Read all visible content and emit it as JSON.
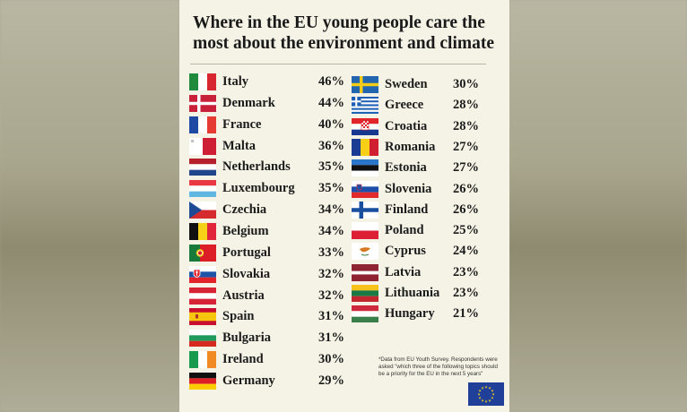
{
  "title": "Where in the EU young people care the most about the environment and climate",
  "footnote": "*Data from EU Youth Survey. Respondents were asked \"which three of the following topics should be a priority for the EU in the next 5 years\"",
  "chart_data": {
    "type": "table",
    "title": "Where in the EU young people care the most about the environment and climate",
    "rows": [
      {
        "country": "Italy",
        "value": "46%",
        "flag": "italy-flag"
      },
      {
        "country": "Denmark",
        "value": "44%",
        "flag": "denmark-flag"
      },
      {
        "country": "France",
        "value": "40%",
        "flag": "france-flag"
      },
      {
        "country": "Malta",
        "value": "36%",
        "flag": "malta-flag"
      },
      {
        "country": "Netherlands",
        "value": "35%",
        "flag": "netherlands-flag"
      },
      {
        "country": "Luxembourg",
        "value": "35%",
        "flag": "luxembourg-flag"
      },
      {
        "country": "Czechia",
        "value": "34%",
        "flag": "czechia-flag"
      },
      {
        "country": "Belgium",
        "value": "34%",
        "flag": "belgium-flag"
      },
      {
        "country": "Portugal",
        "value": "33%",
        "flag": "portugal-flag"
      },
      {
        "country": "Slovakia",
        "value": "32%",
        "flag": "slovakia-flag"
      },
      {
        "country": "Austria",
        "value": "32%",
        "flag": "austria-flag"
      },
      {
        "country": "Spain",
        "value": "31%",
        "flag": "spain-flag"
      },
      {
        "country": "Bulgaria",
        "value": "31%",
        "flag": "bulgaria-flag"
      },
      {
        "country": "Ireland",
        "value": "30%",
        "flag": "ireland-flag"
      },
      {
        "country": "Germany",
        "value": "29%",
        "flag": "germany-flag"
      },
      {
        "country": "Sweden",
        "value": "30%",
        "flag": "sweden-flag"
      },
      {
        "country": "Greece",
        "value": "28%",
        "flag": "greece-flag"
      },
      {
        "country": "Croatia",
        "value": "28%",
        "flag": "croatia-flag"
      },
      {
        "country": "Romania",
        "value": "27%",
        "flag": "romania-flag"
      },
      {
        "country": "Estonia",
        "value": "27%",
        "flag": "estonia-flag"
      },
      {
        "country": "Slovenia",
        "value": "26%",
        "flag": "slovenia-flag"
      },
      {
        "country": "Finland",
        "value": "26%",
        "flag": "finland-flag"
      },
      {
        "country": "Poland",
        "value": "25%",
        "flag": "poland-flag"
      },
      {
        "country": "Cyprus",
        "value": "24%",
        "flag": "cyprus-flag"
      },
      {
        "country": "Latvia",
        "value": "23%",
        "flag": "latvia-flag"
      },
      {
        "country": "Lithuania",
        "value": "23%",
        "flag": "lithuania-flag"
      },
      {
        "country": "Hungary",
        "value": "21%",
        "flag": "hungary-flag"
      }
    ]
  },
  "eu_flag": "eu-flag-icon"
}
